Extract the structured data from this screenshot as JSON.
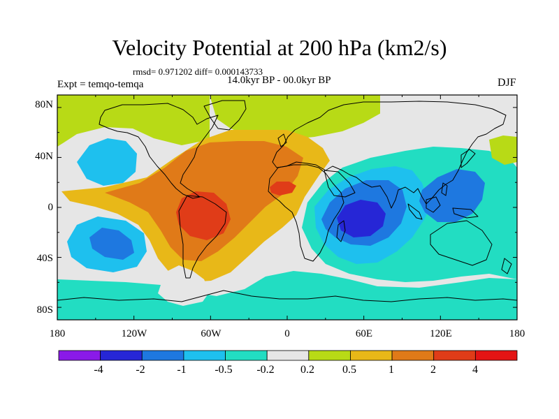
{
  "figure": {
    "title": "Velocity Potential at 200 hPa (km2/s)",
    "stats": "rmsd= 0.971202 diff= 0.000143733",
    "period": "14.0kyr BP - 00.0kyr BP",
    "experiment": "Expt = temqo-temqa",
    "season": "DJF"
  },
  "axes": {
    "x_ticks": [
      "180",
      "120W",
      "60W",
      "0",
      "60E",
      "120E",
      "180"
    ],
    "y_ticks": [
      "80N",
      "40N",
      "0",
      "40S",
      "80S"
    ]
  },
  "colorbar": {
    "labels": [
      "-4",
      "-2",
      "-1",
      "-0.5",
      "-0.2",
      "0.2",
      "0.5",
      "1",
      "2",
      "4"
    ],
    "colors": [
      "#8a1ae8",
      "#2626d6",
      "#1e78e0",
      "#1ec0ee",
      "#22ddc2",
      "#e6e6e6",
      "#b8da16",
      "#e8b818",
      "#e07a18",
      "#e03c18",
      "#e41414"
    ]
  },
  "chart_data": {
    "type": "filled-contour-map",
    "title": "Velocity Potential at 200 hPa (km2/s)",
    "subtitle": "14.0kyr BP - 00.0kyr BP",
    "experiment": "temqo-temqa",
    "season": "DJF",
    "rmsd": 0.971202,
    "diff": 0.000143733,
    "xlim": [
      -180,
      180
    ],
    "ylim": [
      -90,
      90
    ],
    "contour_levels": [
      -4,
      -2,
      -1,
      -0.5,
      -0.2,
      0.2,
      0.5,
      1,
      2,
      4
    ],
    "regions": [
      {
        "name": "background",
        "value": 0
      },
      {
        "name": "north-pacific-positive",
        "value": 0.35
      },
      {
        "name": "arctic-positive",
        "value": 0.3
      },
      {
        "name": "atlantic-africa-positive-1",
        "value": 0.7
      },
      {
        "name": "atlantic-africa-positive-2",
        "value": 1.5
      },
      {
        "name": "south-america-maximum",
        "value": 3
      },
      {
        "name": "west-africa-maximum",
        "value": 3
      },
      {
        "name": "eastern-hemisphere-negative-1",
        "value": -0.3
      },
      {
        "name": "eastern-hemisphere-negative-2",
        "value": -0.7
      },
      {
        "name": "indian-ocean-negative",
        "value": -1.5
      },
      {
        "name": "indian-ocean-minimum",
        "value": -3
      },
      {
        "name": "west-pacific-negative",
        "value": -1.5
      },
      {
        "name": "southern-ocean-negative",
        "value": -0.3
      },
      {
        "name": "north-pacific-negative-1",
        "value": -0.7
      },
      {
        "name": "south-pacific-negative-1",
        "value": -0.7
      },
      {
        "name": "south-pacific-negative-2",
        "value": -1.5
      },
      {
        "name": "southern-positive-1",
        "value": 0.1
      },
      {
        "name": "southern-positive-2",
        "value": 0.1
      },
      {
        "name": "eastern-pacific-positive",
        "value": 0.35
      }
    ]
  }
}
